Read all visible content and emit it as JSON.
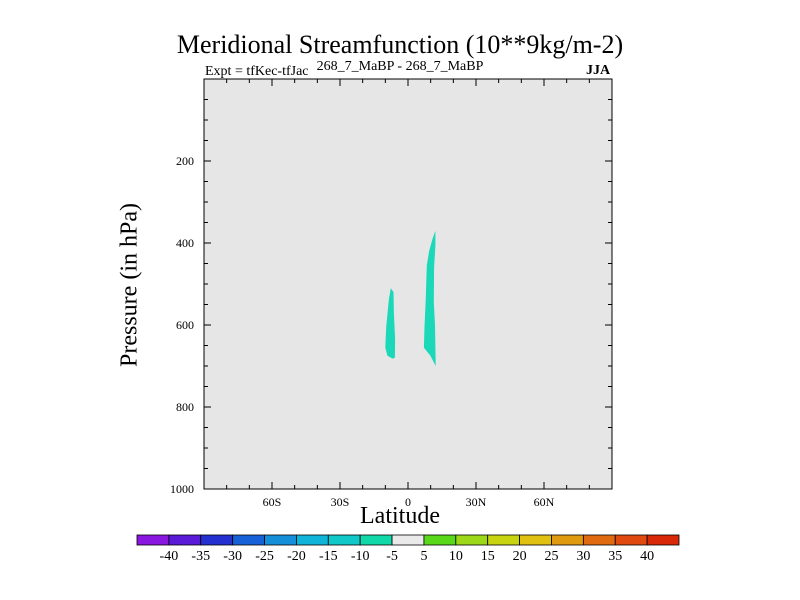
{
  "chart_data": {
    "type": "heatmap",
    "title": "Meridional Streamfunction (10**9kg/m-2)",
    "subtitle_left": "Expt = tfKec-tfJac",
    "subtitle_center": "268_7_MaBP - 268_7_MaBP",
    "subtitle_right": "JJA",
    "xlabel": "Latitude",
    "ylabel": "Pressure (in hPa)",
    "xlim": [
      -90,
      90
    ],
    "ylim": [
      1000,
      0
    ],
    "y_inverted": true,
    "x_ticks": [
      {
        "value": -60,
        "label": "60S"
      },
      {
        "value": -30,
        "label": "30S"
      },
      {
        "value": 0,
        "label": "0"
      },
      {
        "value": 30,
        "label": "30N"
      },
      {
        "value": 60,
        "label": "60N"
      }
    ],
    "y_ticks": [
      {
        "value": 200,
        "label": "200"
      },
      {
        "value": 400,
        "label": "400"
      },
      {
        "value": 600,
        "label": "600"
      },
      {
        "value": 800,
        "label": "800"
      },
      {
        "value": 1000,
        "label": "1000"
      }
    ],
    "background_color": "#e6e6e6",
    "colorbar": {
      "labels": [
        "-40",
        "-35",
        "-30",
        "-25",
        "-20",
        "-15",
        "-10",
        "-5",
        "5",
        "10",
        "15",
        "20",
        "25",
        "30",
        "35",
        "40"
      ],
      "colors": [
        "#8a17e0",
        "#5a1ad8",
        "#2530d0",
        "#1660d8",
        "#1590d8",
        "#10b4d8",
        "#10c8c8",
        "#10d8a8",
        "#eaeaea",
        "#58d818",
        "#9cd818",
        "#c8d410",
        "#e0c010",
        "#e09a10",
        "#e06a10",
        "#e04a10",
        "#d82808"
      ]
    },
    "contours": [
      {
        "range": "-10 to -5",
        "color": "#1ad8b8",
        "points": [
          [
            -7.6,
            510
          ],
          [
            -6.4,
            520
          ],
          [
            -6.2,
            570
          ],
          [
            -5.7,
            635
          ],
          [
            -5.8,
            680
          ],
          [
            -6.8,
            682
          ],
          [
            -9.1,
            675
          ],
          [
            -10.0,
            655
          ],
          [
            -9.6,
            605
          ],
          [
            -8.4,
            535
          ]
        ]
      },
      {
        "range": "-10 to -5",
        "color": "#1ad8b8",
        "points": [
          [
            12.1,
            370
          ],
          [
            12.1,
            405
          ],
          [
            11.5,
            460
          ],
          [
            11.4,
            545
          ],
          [
            11.9,
            600
          ],
          [
            12.2,
            700
          ],
          [
            9.9,
            675
          ],
          [
            7.0,
            655
          ],
          [
            7.3,
            605
          ],
          [
            7.8,
            540
          ],
          [
            8.3,
            455
          ],
          [
            9.3,
            420
          ],
          [
            10.8,
            390
          ]
        ]
      }
    ]
  }
}
